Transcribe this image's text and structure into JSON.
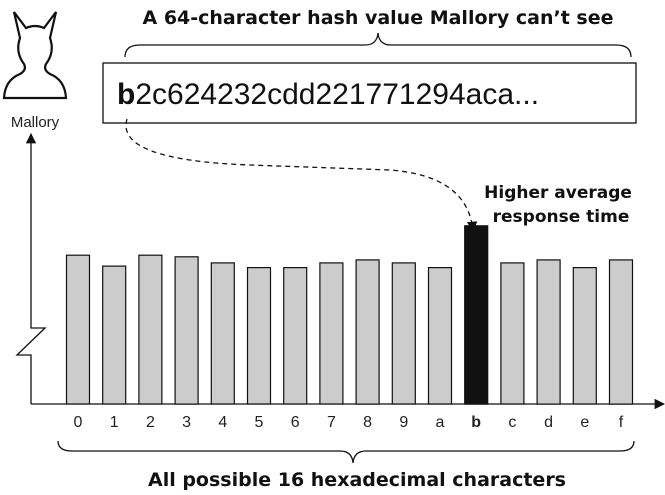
{
  "title": "A 64-character hash value Mallory can’t see",
  "attacker": {
    "name": "Mallory",
    "icon": "devil-person-icon"
  },
  "hash": {
    "first_char": "b",
    "rest": "2c624232cdd221771294aca..."
  },
  "highlight_label": {
    "line1": "Higher average",
    "line2": "response time"
  },
  "bottom_caption": "All possible 16 hexadecimal characters",
  "colors": {
    "bar": "#cccccc",
    "highlight": "#111111",
    "stroke": "#111111"
  },
  "chart_data": {
    "type": "bar",
    "categories": [
      "0",
      "1",
      "2",
      "3",
      "4",
      "5",
      "6",
      "7",
      "8",
      "9",
      "a",
      "b",
      "c",
      "d",
      "e",
      "f"
    ],
    "values": [
      0.96,
      0.89,
      0.96,
      0.95,
      0.91,
      0.88,
      0.88,
      0.91,
      0.93,
      0.91,
      0.88,
      1.15,
      0.91,
      0.93,
      0.88,
      0.93
    ],
    "highlighted": "b",
    "yaxis": "broken"
  }
}
